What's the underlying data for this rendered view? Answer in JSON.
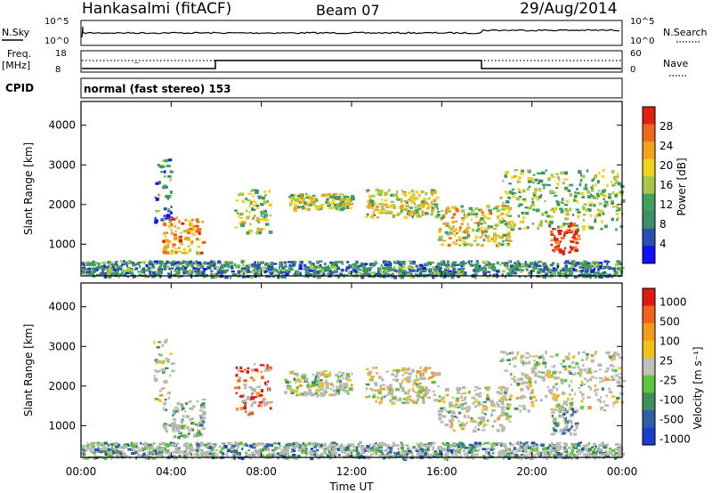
{
  "header": {
    "station": "Hankasalmi (fitACF)",
    "beam": "Beam 07",
    "date": "29/Aug/2014"
  },
  "nsky_panel": {
    "left_label": "N.Sky",
    "right_label": "N.Search",
    "left_ticks": [
      "10^5",
      "10^0"
    ],
    "right_ticks": [
      "10^5",
      "10^0"
    ]
  },
  "freq_panel": {
    "left_label_line1": "Freq.",
    "left_label_line2": "[MHz]",
    "right_label": "Nave",
    "left_ticks": [
      "18",
      "8"
    ],
    "right_ticks": [
      "60",
      "0"
    ]
  },
  "cpid": {
    "label": "CPID",
    "value": "normal (fast stereo) 153"
  },
  "colors": {
    "power_scale": [
      "#1010ff",
      "#2a4fb0",
      "#3f8e6a",
      "#3fa060",
      "#a6c74a",
      "#f2d21b",
      "#f2a31b",
      "#f0681a",
      "#e02010"
    ],
    "velocity_scale": [
      "#1a3fc8",
      "#2d5fa8",
      "#3f8f5a",
      "#5ec43a",
      "#c0c0b8",
      "#f2c01a",
      "#f29a1a",
      "#f0641a",
      "#e01a10"
    ],
    "ground_scatter": "#b8b8b0"
  },
  "chart_data": [
    {
      "type": "heatmap",
      "name": "power",
      "xlabel": "",
      "ylabel": "Slant Range [km]",
      "xlim": [
        0,
        24
      ],
      "ylim": [
        200,
        4600
      ],
      "y_ticks": [
        "1000",
        "2000",
        "3000",
        "4000"
      ],
      "colorbar": {
        "label": "Power [dB]",
        "ticks": [
          "4",
          "8",
          "12",
          "16",
          "20",
          "24",
          "28"
        ],
        "range": [
          0,
          32
        ]
      },
      "features": [
        {
          "t0": 3.2,
          "t1": 4.0,
          "r0": 1500,
          "r1": 3200,
          "level": 0.25
        },
        {
          "t0": 3.6,
          "t1": 5.4,
          "r0": 800,
          "r1": 1700,
          "level": 0.7
        },
        {
          "t0": 6.8,
          "t1": 8.4,
          "r0": 1300,
          "r1": 2400,
          "level": 0.5
        },
        {
          "t0": 9.2,
          "t1": 12.0,
          "r0": 1900,
          "r1": 2300,
          "level": 0.5
        },
        {
          "t0": 12.6,
          "t1": 15.8,
          "r0": 1700,
          "r1": 2400,
          "level": 0.55
        },
        {
          "t0": 15.8,
          "t1": 19.0,
          "r0": 1000,
          "r1": 2000,
          "level": 0.6
        },
        {
          "t0": 18.5,
          "t1": 24.0,
          "r0": 1400,
          "r1": 2900,
          "level": 0.45
        },
        {
          "t0": 20.8,
          "t1": 22.0,
          "r0": 800,
          "r1": 1600,
          "level": 0.95
        },
        {
          "t0": 0.0,
          "t1": 24.0,
          "r0": 200,
          "r1": 600,
          "level": 0.3
        }
      ]
    },
    {
      "type": "heatmap",
      "name": "velocity",
      "xlabel": "Time UT",
      "ylabel": "Slant Range [km]",
      "xlim": [
        0,
        24
      ],
      "ylim": [
        200,
        4600
      ],
      "x_ticks": [
        "00:00",
        "04:00",
        "08:00",
        "12:00",
        "16:00",
        "20:00",
        "00:00"
      ],
      "y_ticks": [
        "1000",
        "2000",
        "3000",
        "4000"
      ],
      "colorbar": {
        "label": "Velocity [m s⁻¹]",
        "ticks": [
          "1000",
          "500",
          "100",
          "25",
          "-25",
          "-100",
          "-500",
          "-1000"
        ]
      },
      "features": [
        {
          "t0": 3.2,
          "t1": 4.0,
          "r0": 1500,
          "r1": 3200,
          "level": 0.45
        },
        {
          "t0": 3.6,
          "t1": 5.4,
          "r0": 700,
          "r1": 1700,
          "level": 0.35
        },
        {
          "t0": 6.8,
          "t1": 8.4,
          "r0": 1300,
          "r1": 2600,
          "level": 0.9
        },
        {
          "t0": 9.0,
          "t1": 12.0,
          "r0": 1800,
          "r1": 2400,
          "level": 0.5
        },
        {
          "t0": 12.6,
          "t1": 15.8,
          "r0": 1600,
          "r1": 2500,
          "level": 0.55
        },
        {
          "t0": 15.8,
          "t1": 19.0,
          "r0": 900,
          "r1": 2000,
          "level": 0.5
        },
        {
          "t0": 18.5,
          "t1": 24.0,
          "r0": 1400,
          "r1": 2900,
          "level": 0.5
        },
        {
          "t0": 20.8,
          "t1": 22.0,
          "r0": 800,
          "r1": 1600,
          "level": 0.3
        },
        {
          "t0": 0.0,
          "t1": 24.0,
          "r0": 200,
          "r1": 600,
          "level": 0.3
        }
      ]
    }
  ]
}
